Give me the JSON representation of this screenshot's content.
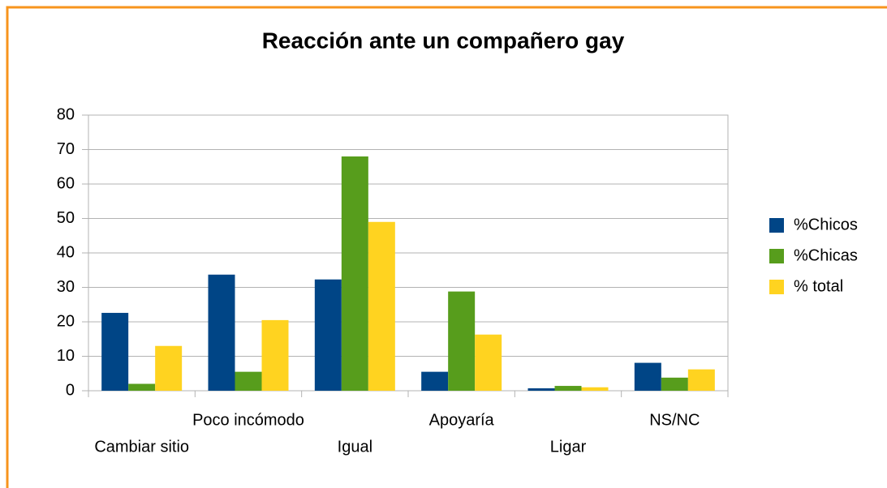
{
  "chart_data": {
    "type": "bar",
    "title": "Reacción ante un compañero gay",
    "categories": [
      "Cambiar sitio",
      "Poco incómodo",
      "Igual",
      "Apoyaría",
      "Ligar",
      "NS/NC"
    ],
    "series": [
      {
        "name": "%Chicos",
        "color": "#004586",
        "values": [
          22.6,
          33.7,
          32.3,
          5.5,
          0.7,
          8.1
        ]
      },
      {
        "name": "%Chicas",
        "color": "#579d1c",
        "values": [
          2,
          5.5,
          68,
          28.8,
          1.4,
          3.8
        ]
      },
      {
        "name": "% total",
        "color": "#ffd320",
        "values": [
          13,
          20.5,
          49,
          16.3,
          1,
          6.2
        ]
      }
    ],
    "ylim": [
      0,
      80
    ],
    "yticks": [
      0,
      10,
      20,
      30,
      40,
      50,
      60,
      70,
      80
    ],
    "grid": true,
    "legend": "right"
  }
}
